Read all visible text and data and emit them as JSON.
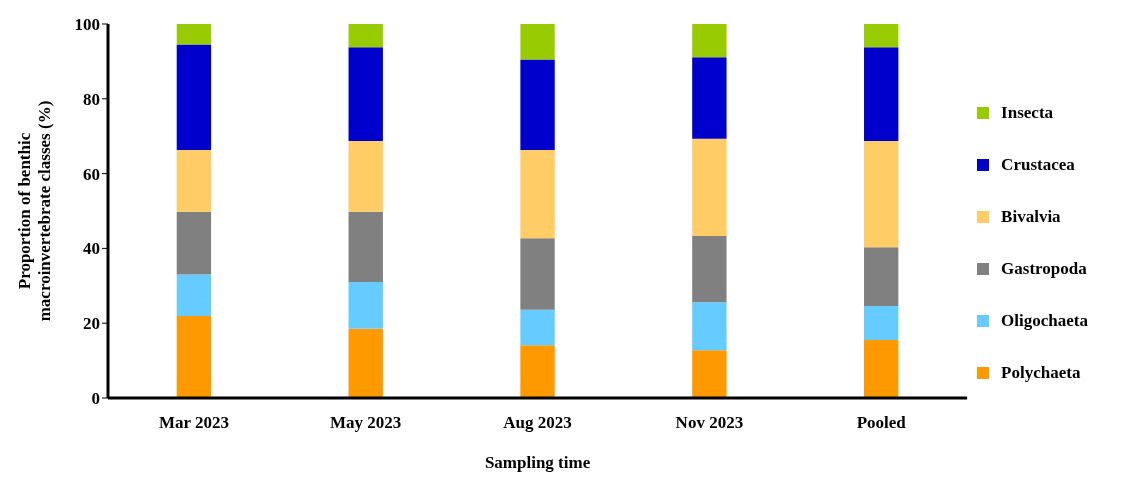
{
  "chart_data": {
    "type": "bar",
    "stacked": true,
    "xlabel": "Sampling time",
    "ylabel": "Proportion of benthic macroinvertebrate classes (%)",
    "categories": [
      "Mar 2023",
      "May 2023",
      "Aug 2023",
      "Nov 2023",
      "Pooled"
    ],
    "series": [
      {
        "name": "Polychaeta",
        "color": "#ff9900",
        "values": [
          21.9,
          18.5,
          14.1,
          12.8,
          15.5
        ]
      },
      {
        "name": "Oligochaeta",
        "color": "#66ccff",
        "values": [
          11.1,
          12.5,
          9.5,
          12.8,
          9.1
        ]
      },
      {
        "name": "Gastropoda",
        "color": "#808080",
        "values": [
          16.8,
          18.8,
          19.1,
          17.7,
          15.7
        ]
      },
      {
        "name": "Bivalvia",
        "color": "#ffcc66",
        "values": [
          16.5,
          18.9,
          23.6,
          26.0,
          28.4
        ]
      },
      {
        "name": "Crustacea",
        "color": "#0000cc",
        "values": [
          28.2,
          25.1,
          24.2,
          21.8,
          25.1
        ]
      },
      {
        "name": "Insecta",
        "color": "#99cc00",
        "values": [
          5.5,
          6.2,
          9.5,
          8.9,
          6.2
        ]
      }
    ],
    "ylim": [
      0,
      100
    ],
    "yticks": [
      0,
      20,
      40,
      60,
      80,
      100
    ],
    "grid": false,
    "legend": "right"
  }
}
